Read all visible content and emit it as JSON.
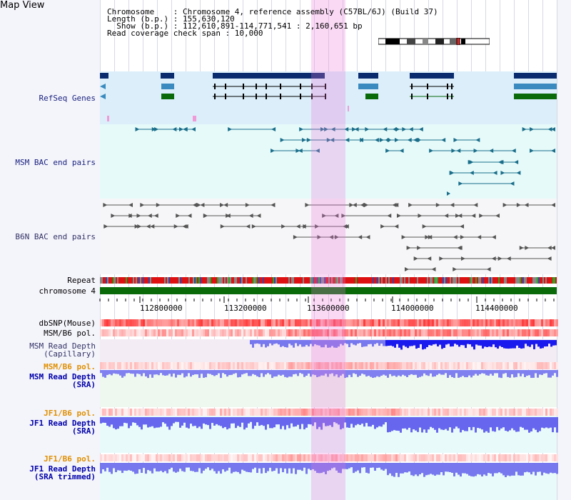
{
  "title": "Map View",
  "info": {
    "chromosome": "Chromosome    : Chromosome 4, reference assembly (C57BL/6J) (Build 37)",
    "length": "Length (b.p.) : 155,630,120",
    "show": "  Show (b.p.) : 112,610,891-114,771,541 : 2,160,651 bp",
    "coverage": "Read coverage check span : 10,000"
  },
  "tracks": {
    "refseq": "RefSeq Genes",
    "msm_bac": "MSM BAC end pairs",
    "b6n_bac": "B6N BAC end pairs",
    "repeat": "Repeat",
    "chromosome": "chromosome 4",
    "dbsnp": "dbSNP(Mouse)",
    "msm_b6_pol": "MSM/B6 pol.",
    "msm_depth_cap": "MSM Read Depth\n(Capillary)",
    "msm_b6_pol2": "MSM/B6 pol.",
    "msm_depth_sra": "MSM Read Depth\n(SRA)",
    "jf1_b6_pol": "JF1/B6 pol.",
    "jf1_depth_sra": "JF1 Read Depth\n(SRA)",
    "jf1_b6_pol2": "JF1/B6 pol.",
    "jf1_depth_trim": "JF1 Read Depth\n(SRA trimmed)"
  },
  "ruler": [
    "112800000",
    "113200000",
    "113600000",
    "114000000",
    "114400000"
  ],
  "colors": {
    "refseq_bg": "#dbeef9",
    "bac_bg": "#e6fafa",
    "b6n_bg": "#f5f5f7",
    "highlight": "#ec78dc",
    "chrom_green": "#0a6a0a",
    "depth_blue": "#3333ee",
    "snp_red": "#ee3333"
  }
}
